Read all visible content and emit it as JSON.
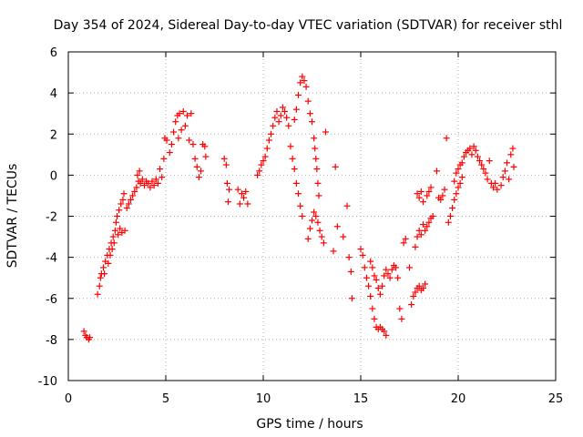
{
  "chart_data": {
    "type": "scatter",
    "title": "Day 354 of 2024, Sidereal Day-to-day VTEC variation (SDTVAR) for receiver sthl",
    "xlabel": "GPS time / hours",
    "ylabel": "SDTVAR / TECUs",
    "xlim": [
      0,
      25
    ],
    "ylim": [
      -10,
      6
    ],
    "xticks": [
      0,
      5,
      10,
      15,
      20,
      25
    ],
    "yticks": [
      -10,
      -8,
      -6,
      -4,
      -2,
      0,
      2,
      4,
      6
    ],
    "grid": true,
    "marker": "+",
    "color": "#ff0000",
    "series": [
      {
        "name": "sthl",
        "points": [
          [
            0.8,
            -7.6
          ],
          [
            0.88,
            -7.8
          ],
          [
            0.95,
            -7.9
          ],
          [
            1.05,
            -8.0
          ],
          [
            1.1,
            -7.9
          ],
          [
            1.5,
            -5.8
          ],
          [
            1.6,
            -5.4
          ],
          [
            1.65,
            -5.0
          ],
          [
            1.7,
            -4.8
          ],
          [
            1.8,
            -4.5
          ],
          [
            1.85,
            -4.8
          ],
          [
            1.9,
            -4.2
          ],
          [
            2.0,
            -3.9
          ],
          [
            2.05,
            -4.3
          ],
          [
            2.1,
            -3.6
          ],
          [
            2.15,
            -3.9
          ],
          [
            2.2,
            -3.3
          ],
          [
            2.25,
            -3.6
          ],
          [
            2.3,
            -3.0
          ],
          [
            2.35,
            -3.3
          ],
          [
            2.4,
            -2.7
          ],
          [
            2.45,
            -2.3
          ],
          [
            2.5,
            -2.0
          ],
          [
            2.55,
            -2.9
          ],
          [
            2.6,
            -1.7
          ],
          [
            2.65,
            -2.6
          ],
          [
            2.7,
            -1.4
          ],
          [
            2.75,
            -2.8
          ],
          [
            2.8,
            -1.2
          ],
          [
            2.85,
            -0.9
          ],
          [
            2.9,
            -2.7
          ],
          [
            3.0,
            -1.6
          ],
          [
            3.1,
            -1.4
          ],
          [
            3.2,
            -1.2
          ],
          [
            3.3,
            -1.0
          ],
          [
            3.4,
            -0.8
          ],
          [
            3.5,
            -0.6
          ],
          [
            3.55,
            0.0
          ],
          [
            3.6,
            -0.3
          ],
          [
            3.65,
            0.2
          ],
          [
            3.7,
            -0.4
          ],
          [
            3.8,
            -0.2
          ],
          [
            3.9,
            -0.5
          ],
          [
            4.0,
            -0.3
          ],
          [
            4.1,
            -0.4
          ],
          [
            4.2,
            -0.6
          ],
          [
            4.3,
            -0.3
          ],
          [
            4.4,
            -0.5
          ],
          [
            4.5,
            -0.2
          ],
          [
            4.6,
            -0.4
          ],
          [
            4.7,
            0.3
          ],
          [
            4.8,
            -0.1
          ],
          [
            4.9,
            0.8
          ],
          [
            4.95,
            1.8
          ],
          [
            5.05,
            1.7
          ],
          [
            5.2,
            1.1
          ],
          [
            5.3,
            1.5
          ],
          [
            5.4,
            2.1
          ],
          [
            5.5,
            2.6
          ],
          [
            5.6,
            2.9
          ],
          [
            5.65,
            1.8
          ],
          [
            5.7,
            3.0
          ],
          [
            5.8,
            2.2
          ],
          [
            5.9,
            3.1
          ],
          [
            6.0,
            2.4
          ],
          [
            6.1,
            2.9
          ],
          [
            6.2,
            1.7
          ],
          [
            6.3,
            3.0
          ],
          [
            6.4,
            1.5
          ],
          [
            6.5,
            0.8
          ],
          [
            6.6,
            0.4
          ],
          [
            6.7,
            -0.1
          ],
          [
            6.8,
            0.2
          ],
          [
            6.9,
            1.5
          ],
          [
            7.0,
            1.4
          ],
          [
            7.05,
            0.9
          ],
          [
            8.0,
            0.8
          ],
          [
            8.1,
            0.5
          ],
          [
            8.15,
            -0.4
          ],
          [
            8.2,
            -1.3
          ],
          [
            8.25,
            -0.7
          ],
          [
            8.7,
            -0.7
          ],
          [
            8.8,
            -1.4
          ],
          [
            8.9,
            -0.9
          ],
          [
            9.0,
            -1.1
          ],
          [
            9.1,
            -0.8
          ],
          [
            9.2,
            -1.4
          ],
          [
            9.7,
            0.0
          ],
          [
            9.8,
            0.2
          ],
          [
            9.9,
            0.5
          ],
          [
            10.0,
            0.7
          ],
          [
            10.1,
            0.9
          ],
          [
            10.2,
            1.3
          ],
          [
            10.3,
            1.7
          ],
          [
            10.4,
            2.0
          ],
          [
            10.5,
            2.4
          ],
          [
            10.6,
            2.8
          ],
          [
            10.7,
            3.1
          ],
          [
            10.8,
            2.6
          ],
          [
            10.9,
            2.9
          ],
          [
            11.0,
            3.3
          ],
          [
            11.1,
            3.1
          ],
          [
            11.2,
            2.8
          ],
          [
            11.3,
            2.4
          ],
          [
            11.4,
            1.4
          ],
          [
            11.5,
            0.8
          ],
          [
            11.6,
            0.3
          ],
          [
            11.7,
            -0.4
          ],
          [
            11.8,
            -0.9
          ],
          [
            11.9,
            -1.5
          ],
          [
            12.0,
            -2.0
          ],
          [
            11.6,
            2.7
          ],
          [
            11.7,
            3.2
          ],
          [
            11.8,
            3.9
          ],
          [
            11.9,
            4.5
          ],
          [
            12.0,
            4.8
          ],
          [
            12.1,
            4.6
          ],
          [
            12.2,
            4.3
          ],
          [
            12.3,
            3.6
          ],
          [
            12.4,
            3.0
          ],
          [
            12.5,
            2.6
          ],
          [
            12.6,
            1.8
          ],
          [
            12.65,
            1.3
          ],
          [
            12.7,
            0.8
          ],
          [
            12.75,
            0.3
          ],
          [
            12.8,
            -0.4
          ],
          [
            12.85,
            -1.0
          ],
          [
            12.3,
            -3.1
          ],
          [
            12.4,
            -2.6
          ],
          [
            12.5,
            -2.2
          ],
          [
            12.6,
            -1.8
          ],
          [
            12.7,
            -2.0
          ],
          [
            12.8,
            -2.3
          ],
          [
            12.9,
            -2.7
          ],
          [
            13.0,
            -3.0
          ],
          [
            13.1,
            -3.3
          ],
          [
            13.2,
            2.1
          ],
          [
            13.6,
            -3.7
          ],
          [
            13.7,
            0.4
          ],
          [
            13.8,
            -2.5
          ],
          [
            14.1,
            -3.0
          ],
          [
            14.3,
            -1.5
          ],
          [
            14.4,
            -4.0
          ],
          [
            14.5,
            -4.7
          ],
          [
            14.55,
            -6.0
          ],
          [
            15.0,
            -3.6
          ],
          [
            15.1,
            -3.9
          ],
          [
            15.2,
            -4.5
          ],
          [
            15.3,
            -5.0
          ],
          [
            15.4,
            -5.4
          ],
          [
            15.5,
            -5.9
          ],
          [
            15.6,
            -6.5
          ],
          [
            15.7,
            -7.0
          ],
          [
            15.8,
            -7.4
          ],
          [
            15.9,
            -7.5
          ],
          [
            16.0,
            -7.4
          ],
          [
            16.1,
            -7.5
          ],
          [
            16.2,
            -7.6
          ],
          [
            16.3,
            -7.8
          ],
          [
            15.5,
            -4.2
          ],
          [
            15.6,
            -4.5
          ],
          [
            15.7,
            -4.9
          ],
          [
            15.8,
            -5.1
          ],
          [
            15.9,
            -5.5
          ],
          [
            16.0,
            -5.8
          ],
          [
            16.1,
            -5.4
          ],
          [
            16.2,
            -4.9
          ],
          [
            16.3,
            -4.6
          ],
          [
            16.4,
            -4.8
          ],
          [
            16.5,
            -5.0
          ],
          [
            16.6,
            -4.6
          ],
          [
            16.7,
            -4.4
          ],
          [
            16.8,
            -4.5
          ],
          [
            16.9,
            -5.0
          ],
          [
            17.0,
            -6.5
          ],
          [
            17.1,
            -7.0
          ],
          [
            17.2,
            -3.3
          ],
          [
            17.3,
            -3.1
          ],
          [
            17.5,
            -4.5
          ],
          [
            17.6,
            -6.3
          ],
          [
            17.7,
            -5.9
          ],
          [
            17.8,
            -5.7
          ],
          [
            17.9,
            -5.5
          ],
          [
            18.0,
            -5.4
          ],
          [
            18.1,
            -5.6
          ],
          [
            18.2,
            -5.5
          ],
          [
            18.3,
            -5.3
          ],
          [
            17.8,
            -3.5
          ],
          [
            17.9,
            -3.0
          ],
          [
            18.0,
            -2.7
          ],
          [
            18.1,
            -2.9
          ],
          [
            18.2,
            -2.4
          ],
          [
            18.3,
            -2.7
          ],
          [
            18.4,
            -2.5
          ],
          [
            18.5,
            -2.3
          ],
          [
            18.6,
            -2.1
          ],
          [
            18.7,
            -2.0
          ],
          [
            17.9,
            -0.9
          ],
          [
            18.0,
            -1.1
          ],
          [
            18.1,
            -0.8
          ],
          [
            18.2,
            -1.3
          ],
          [
            18.4,
            -1.0
          ],
          [
            18.5,
            -0.8
          ],
          [
            18.6,
            -0.6
          ],
          [
            18.9,
            0.2
          ],
          [
            19.0,
            -1.1
          ],
          [
            19.1,
            -1.2
          ],
          [
            19.2,
            -1.0
          ],
          [
            19.3,
            -0.7
          ],
          [
            19.4,
            1.8
          ],
          [
            19.5,
            -2.3
          ],
          [
            19.6,
            -2.0
          ],
          [
            19.7,
            -1.6
          ],
          [
            19.8,
            -1.2
          ],
          [
            19.9,
            -0.9
          ],
          [
            20.0,
            -0.6
          ],
          [
            20.1,
            -0.4
          ],
          [
            20.2,
            -0.1
          ],
          [
            19.8,
            -0.3
          ],
          [
            19.9,
            0.1
          ],
          [
            20.0,
            0.3
          ],
          [
            20.1,
            0.5
          ],
          [
            20.2,
            0.6
          ],
          [
            20.3,
            0.9
          ],
          [
            20.4,
            1.1
          ],
          [
            20.5,
            1.2
          ],
          [
            20.6,
            1.3
          ],
          [
            20.7,
            1.0
          ],
          [
            20.8,
            1.4
          ],
          [
            20.9,
            1.2
          ],
          [
            21.0,
            0.9
          ],
          [
            21.1,
            0.7
          ],
          [
            21.2,
            0.5
          ],
          [
            21.3,
            0.3
          ],
          [
            21.4,
            0.1
          ],
          [
            21.5,
            -0.2
          ],
          [
            21.6,
            0.7
          ],
          [
            21.7,
            -0.4
          ],
          [
            21.8,
            -0.6
          ],
          [
            21.9,
            -0.4
          ],
          [
            22.0,
            -0.7
          ],
          [
            22.2,
            -0.5
          ],
          [
            22.3,
            -0.1
          ],
          [
            22.4,
            0.2
          ],
          [
            22.5,
            0.6
          ],
          [
            22.6,
            -0.2
          ],
          [
            22.7,
            1.0
          ],
          [
            22.8,
            1.3
          ],
          [
            22.85,
            0.4
          ]
        ]
      }
    ]
  }
}
